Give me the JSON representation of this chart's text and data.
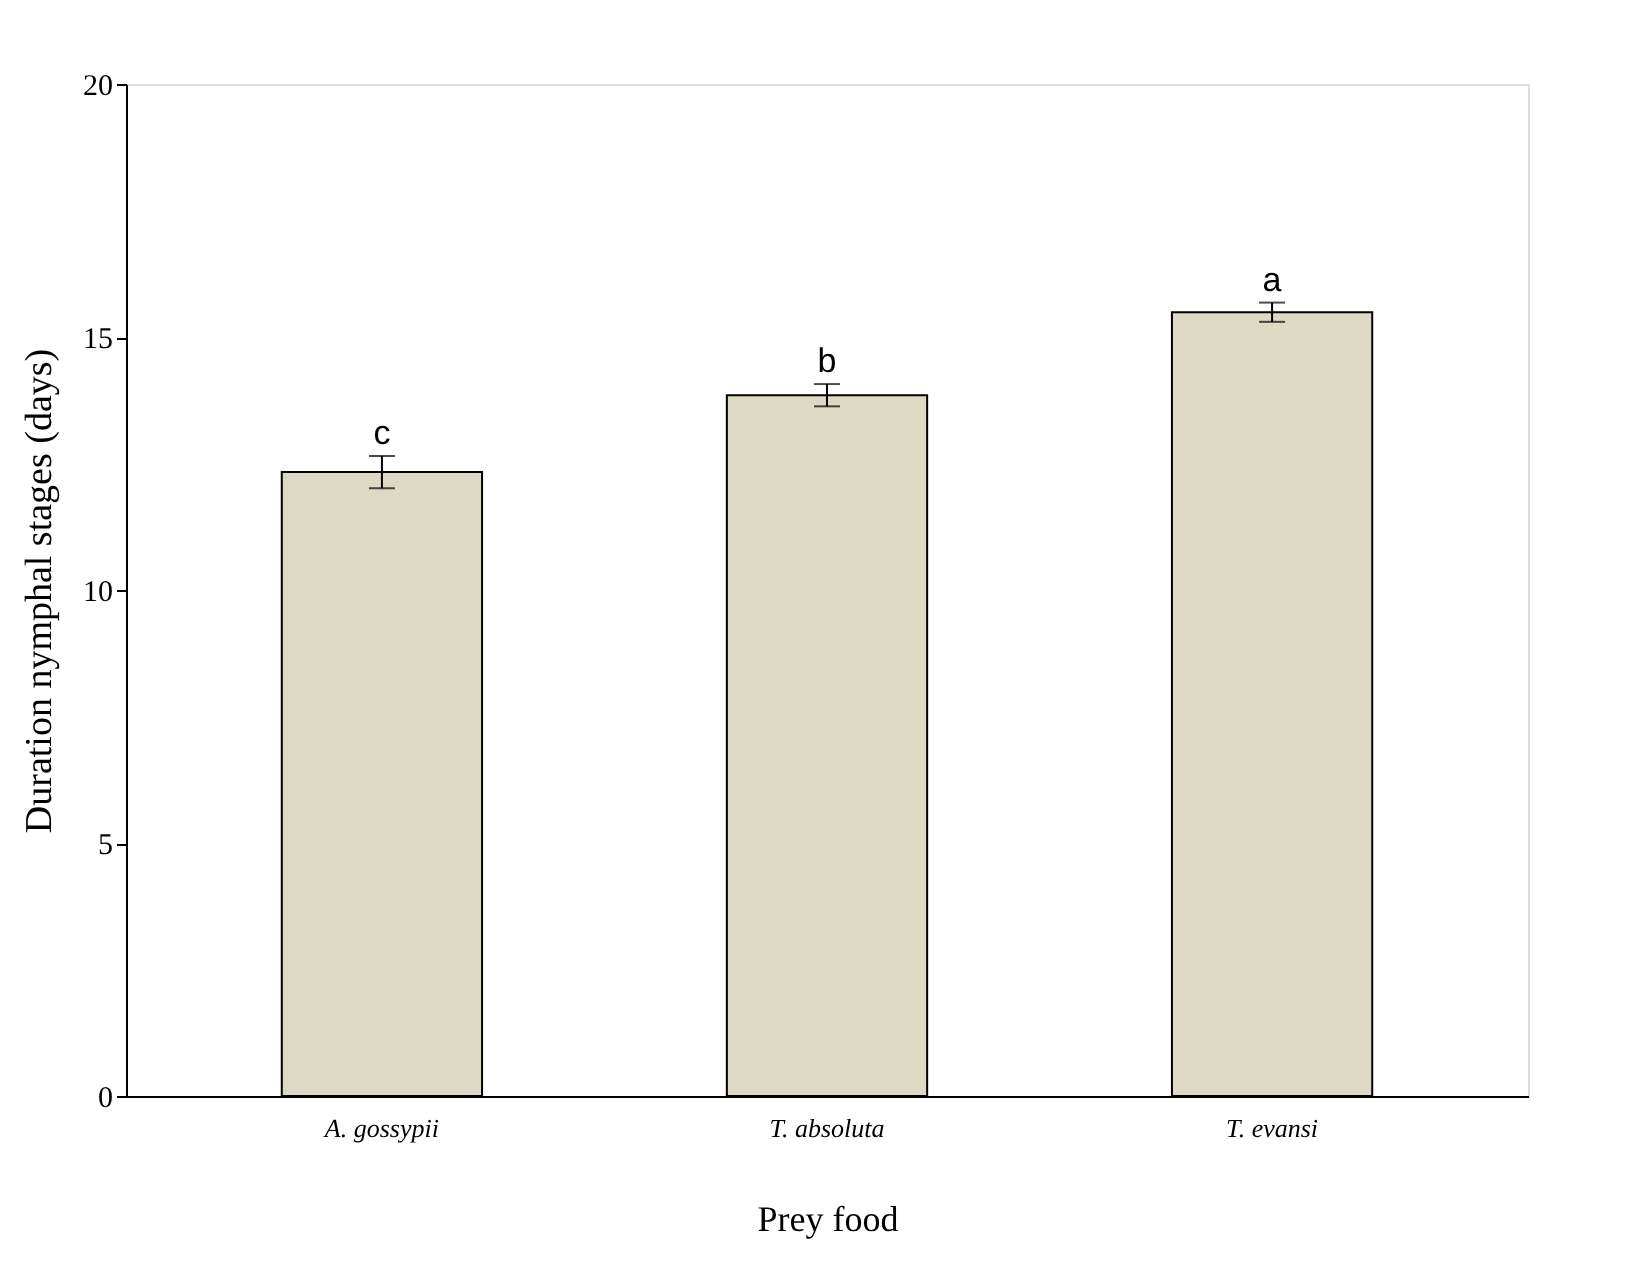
{
  "chart_data": {
    "type": "bar",
    "xlabel": "Prey food",
    "ylabel": "Duration nymphal stages (days)",
    "categories": [
      "A. gossypii",
      "T. absoluta",
      "T. evansi"
    ],
    "values": [
      12.33,
      13.85,
      15.49
    ],
    "errors": [
      0.32,
      0.22,
      0.19
    ],
    "color": "#ddd9c3",
    "ylim": [
      0,
      20
    ],
    "yticks": [
      0,
      5,
      10,
      15,
      20
    ],
    "grid": false,
    "annotations": [
      {
        "text": "c",
        "x": "A. gossypii",
        "y": 12.65
      },
      {
        "text": "b",
        "x": "T. absoluta",
        "y": 14.07
      },
      {
        "text": "a",
        "x": "T. evansi",
        "y": 15.68
      }
    ]
  }
}
